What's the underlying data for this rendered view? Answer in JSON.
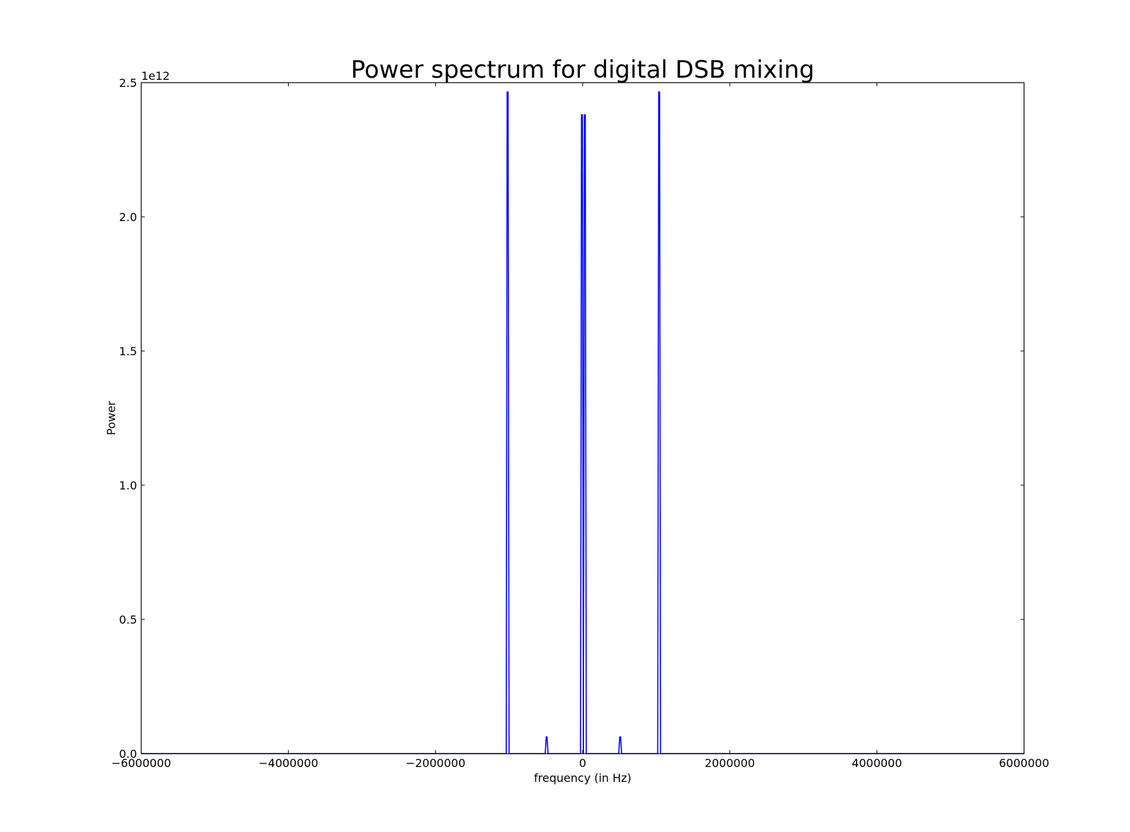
{
  "chart_data": {
    "type": "line",
    "title": "Power spectrum for digital DSB mixing",
    "xlabel": "frequency (in Hz)",
    "ylabel": "Power",
    "y_offset_label": "1e12",
    "y_scale_factor": 1000000000000.0,
    "xlim": [
      -6000000,
      6000000
    ],
    "ylim": [
      0,
      2.5
    ],
    "grid": false,
    "legend": "none",
    "line_color": "#0000ff",
    "x_ticks": [
      -6000000,
      -4000000,
      -2000000,
      0,
      2000000,
      4000000,
      6000000
    ],
    "x_tick_labels": [
      "−6000000",
      "−4000000",
      "−2000000",
      "0",
      "2000000",
      "4000000",
      "6000000"
    ],
    "y_ticks": [
      0,
      0.5,
      1.0,
      1.5,
      2.0,
      2.5
    ],
    "y_tick_labels": [
      "0.0",
      "0.5",
      "1.0",
      "1.5",
      "2.0",
      "2.5"
    ],
    "series": [
      {
        "peaks": [
          {
            "x": -1020000,
            "y": 2.465
          },
          {
            "x": -490000,
            "y": 0.062
          },
          {
            "x": -10000,
            "y": 2.38
          },
          {
            "x": 30000,
            "y": 2.38
          },
          {
            "x": 510000,
            "y": 0.062
          },
          {
            "x": 1040000,
            "y": 2.465
          }
        ]
      }
    ]
  }
}
